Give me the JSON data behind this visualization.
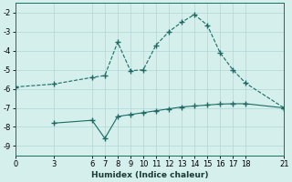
{
  "xlabel": "Humidex (Indice chaleur)",
  "background_color": "#d4efec",
  "grid_color": "#b0d8d4",
  "line_color": "#1a6b63",
  "xlim": [
    0,
    21
  ],
  "ylim": [
    -9.5,
    -1.5
  ],
  "xticks": [
    0,
    3,
    6,
    7,
    8,
    9,
    10,
    11,
    12,
    13,
    14,
    15,
    16,
    17,
    18,
    21
  ],
  "yticks": [
    -9,
    -8,
    -7,
    -6,
    -5,
    -4,
    -3,
    -2
  ],
  "line1_x": [
    0,
    3,
    6,
    7,
    8,
    9,
    10,
    11,
    12,
    13,
    14,
    15,
    16,
    17,
    18,
    21
  ],
  "line1_y": [
    -5.9,
    -5.75,
    -5.4,
    -5.3,
    -3.55,
    -5.05,
    -5.0,
    -3.7,
    -3.0,
    -2.5,
    -2.1,
    -2.65,
    -4.1,
    -5.0,
    -5.7,
    -7.0
  ],
  "line2_x": [
    3,
    6,
    7,
    8,
    9,
    10,
    11,
    12,
    13,
    14,
    15,
    16,
    17,
    18,
    21
  ],
  "line2_y": [
    -7.8,
    -7.65,
    -8.6,
    -7.45,
    -7.35,
    -7.25,
    -7.15,
    -7.05,
    -6.95,
    -6.9,
    -6.85,
    -6.8,
    -6.78,
    -6.78,
    -7.0
  ]
}
